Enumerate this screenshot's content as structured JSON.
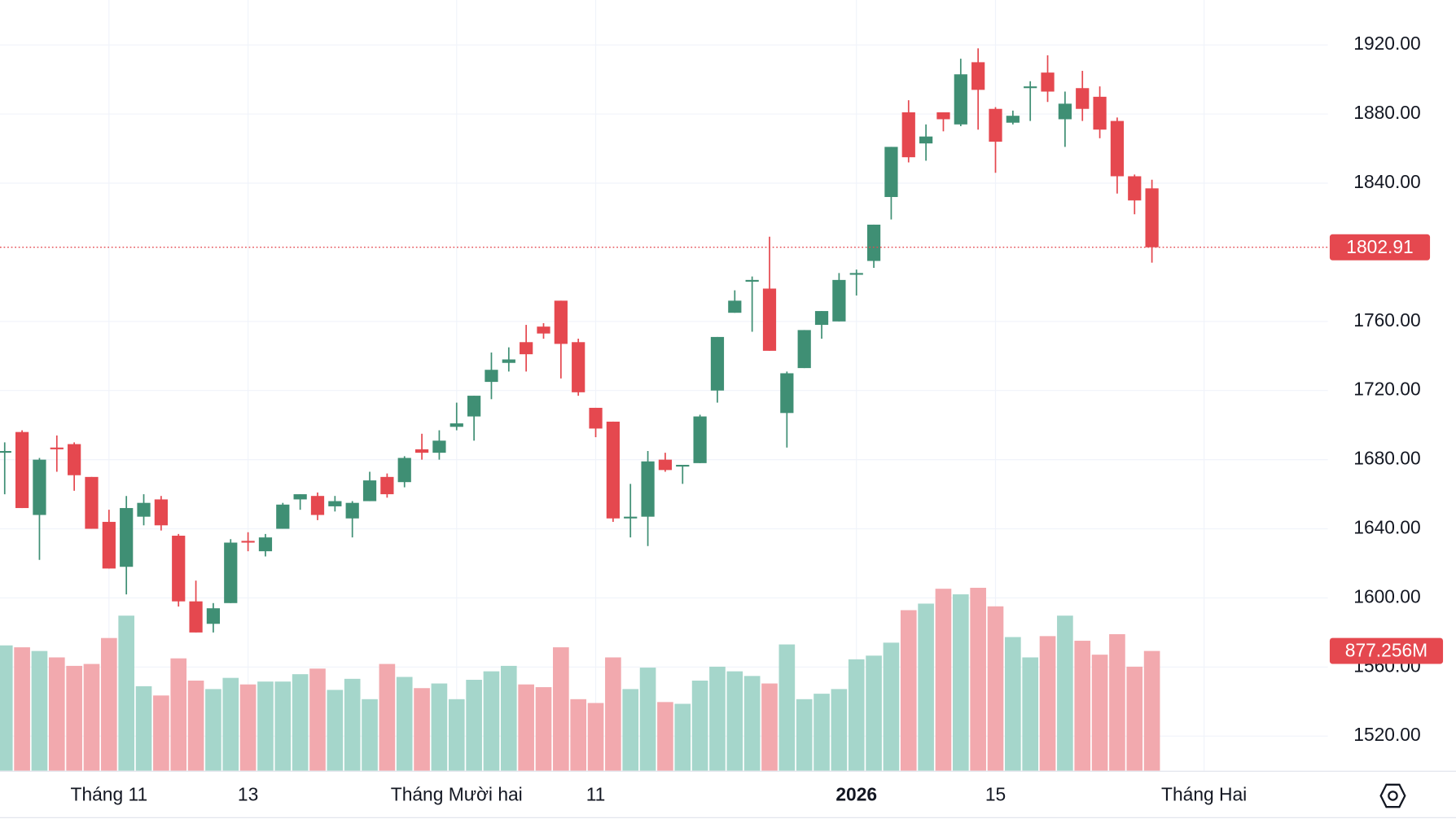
{
  "chart_data": {
    "type": "candlestick",
    "up_color": "#3f8f74",
    "down_color": "#e5484f",
    "volume_up_color": "#a5d6cb",
    "volume_down_color": "#f2a9ae",
    "open": [
      1684,
      1696,
      1648,
      1687,
      1689,
      1670,
      1644,
      1618,
      1647,
      1657,
      1636,
      1598,
      1585,
      1597,
      1633,
      1627,
      1640,
      1657,
      1659,
      1653,
      1646,
      1656,
      1670,
      1667,
      1686,
      1684,
      1699,
      1705,
      1725,
      1736,
      1748,
      1757,
      1772,
      1748,
      1710,
      1702,
      1646,
      1647,
      1680,
      1676,
      1678,
      1720,
      1765,
      1783,
      1779,
      1707,
      1733,
      1758,
      1760,
      1787,
      1795,
      1832,
      1881,
      1863,
      1881,
      1874,
      1910,
      1883,
      1875,
      1895,
      1904,
      1877,
      1895,
      1890,
      1876,
      1844,
      1837
    ],
    "high": [
      1690,
      1697,
      1681,
      1694,
      1690,
      1670,
      1651,
      1659,
      1660,
      1659,
      1637,
      1610,
      1597,
      1634,
      1638,
      1637,
      1655,
      1660,
      1661,
      1659,
      1656,
      1673,
      1672,
      1682,
      1695,
      1697,
      1713,
      1717,
      1742,
      1745,
      1758,
      1759,
      1772,
      1750,
      1710,
      1702,
      1666,
      1685,
      1684,
      1677,
      1706,
      1751,
      1778,
      1786,
      1809,
      1731,
      1755,
      1766,
      1788,
      1790,
      1816,
      1861,
      1888,
      1874,
      1881,
      1912,
      1918,
      1884,
      1882,
      1899,
      1914,
      1893,
      1905,
      1896,
      1878,
      1845,
      1842
    ],
    "low": [
      1660,
      1652,
      1622,
      1673,
      1662,
      1640,
      1617,
      1602,
      1642,
      1639,
      1595,
      1580,
      1580,
      1597,
      1627,
      1624,
      1640,
      1651,
      1645,
      1650,
      1635,
      1656,
      1658,
      1664,
      1680,
      1680,
      1697,
      1691,
      1715,
      1731,
      1731,
      1750,
      1727,
      1717,
      1693,
      1644,
      1635,
      1630,
      1673,
      1666,
      1678,
      1713,
      1765,
      1754,
      1743,
      1687,
      1733,
      1750,
      1760,
      1775,
      1791,
      1819,
      1852,
      1853,
      1870,
      1873,
      1871,
      1846,
      1874,
      1876,
      1887,
      1861,
      1876,
      1866,
      1834,
      1822,
      1794
    ],
    "close": [
      1685,
      1652,
      1680,
      1686,
      1671,
      1640,
      1617,
      1652,
      1655,
      1642,
      1598,
      1580,
      1594,
      1632,
      1632,
      1635,
      1654,
      1660,
      1648,
      1656,
      1655,
      1668,
      1660,
      1681,
      1684,
      1691,
      1701,
      1717,
      1732,
      1738,
      1741,
      1753,
      1747,
      1719,
      1698,
      1646,
      1647,
      1679,
      1674,
      1677,
      1705,
      1751,
      1772,
      1784,
      1743,
      1730,
      1755,
      1766,
      1784,
      1788,
      1816,
      1861,
      1855,
      1867,
      1877,
      1903,
      1894,
      1864,
      1879,
      1896,
      1893,
      1886,
      1883,
      1871,
      1844,
      1830,
      1802.91
    ],
    "volume": {
      "values": [
        918,
        904,
        877,
        830,
        768,
        782,
        972,
        1136,
        619,
        551,
        823,
        660,
        598,
        680,
        632,
        653,
        653,
        707,
        748,
        592,
        673,
        524,
        782,
        687,
        605,
        639,
        524,
        666,
        728,
        768,
        632,
        612,
        904,
        524,
        496,
        830,
        598,
        755,
        503,
        490,
        660,
        762,
        728,
        694,
        639,
        925,
        524,
        564,
        598,
        816,
        843,
        938,
        1176,
        1224,
        1333,
        1292,
        1340,
        1204,
        979,
        830,
        986,
        1136,
        952,
        850,
        1000,
        762,
        877.256
      ],
      "last_value_label": "877.256M"
    },
    "ylim": [
      1500,
      1946
    ],
    "yticks": [
      {
        "value": 1520,
        "label": "1520.00"
      },
      {
        "value": 1560,
        "label": "1560.00"
      },
      {
        "value": 1600,
        "label": "1600.00"
      },
      {
        "value": 1640,
        "label": "1640.00"
      },
      {
        "value": 1680,
        "label": "1680.00"
      },
      {
        "value": 1720,
        "label": "1720.00"
      },
      {
        "value": 1760,
        "label": "1760.00"
      },
      {
        "value": 1840,
        "label": "1840.00"
      },
      {
        "value": 1880,
        "label": "1880.00"
      },
      {
        "value": 1920,
        "label": "1920.00"
      }
    ],
    "xlim": [
      -0.27,
      76.12
    ],
    "xticks": [
      {
        "value": 6,
        "label": "Tháng 11"
      },
      {
        "value": 14,
        "label": "13"
      },
      {
        "value": 26,
        "label": "Tháng Mười hai"
      },
      {
        "value": 34,
        "label": "11"
      },
      {
        "value": 49,
        "label": "2026",
        "bold": true
      },
      {
        "value": 57,
        "label": "15"
      },
      {
        "value": 69,
        "label": "Tháng Hai"
      }
    ],
    "grid": true
  }
}
